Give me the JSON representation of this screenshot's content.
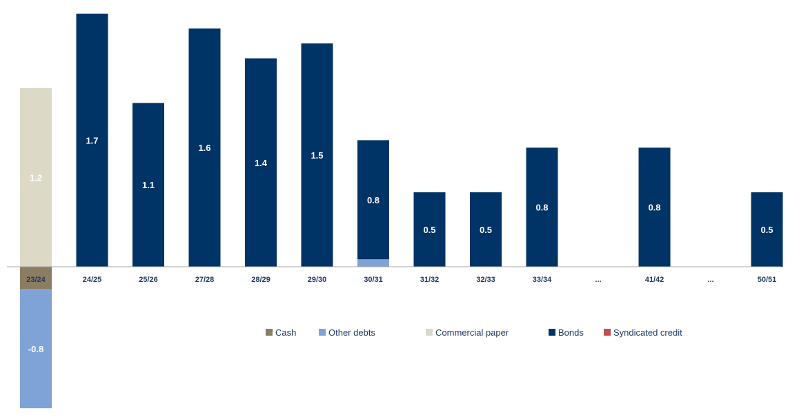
{
  "chart_data": {
    "type": "bar",
    "stacked": true,
    "categories": [
      "23/24",
      "24/25",
      "25/26",
      "27/28",
      "28/29",
      "29/30",
      "30/31",
      "31/32",
      "32/33",
      "33/34",
      "...",
      "41/42",
      "...",
      "50/51"
    ],
    "series": [
      {
        "name": "Cash",
        "color": "#8b7d61",
        "values": [
          -0.15,
          0,
          0,
          0,
          0,
          0,
          0,
          0,
          0,
          0,
          0,
          0,
          0,
          0
        ]
      },
      {
        "name": "Other debts",
        "color": "#7fa3d6",
        "values": [
          -0.8,
          0,
          0,
          0,
          0,
          0,
          0.05,
          0,
          0,
          0,
          0,
          0,
          0,
          0
        ]
      },
      {
        "name": "Commercial paper",
        "color": "#dcdac6",
        "values": [
          1.2,
          0,
          0,
          0,
          0,
          0,
          0,
          0,
          0,
          0,
          0,
          0,
          0,
          0
        ]
      },
      {
        "name": "Bonds",
        "color": "#003366",
        "values": [
          0,
          1.7,
          1.1,
          1.6,
          1.4,
          1.5,
          0.8,
          0.5,
          0.5,
          0.8,
          0,
          0.8,
          0,
          0.5
        ]
      },
      {
        "name": "Syndicated credit",
        "color": "#c0504d",
        "values": [
          0,
          0,
          0,
          0,
          0,
          0,
          0,
          0,
          0,
          0,
          0,
          0,
          0,
          0
        ]
      }
    ],
    "data_labels": [
      {
        "category": "23/24",
        "series": "Commercial paper",
        "text": "1.2"
      },
      {
        "category": "23/24",
        "series": "Other debts",
        "text": "-0.8"
      },
      {
        "category": "24/25",
        "series": "Bonds",
        "text": "1.7"
      },
      {
        "category": "25/26",
        "series": "Bonds",
        "text": "1.1"
      },
      {
        "category": "27/28",
        "series": "Bonds",
        "text": "1.6"
      },
      {
        "category": "28/29",
        "series": "Bonds",
        "text": "1.4"
      },
      {
        "category": "29/30",
        "series": "Bonds",
        "text": "1.5"
      },
      {
        "category": "30/31",
        "series": "Bonds",
        "text": "0.8"
      },
      {
        "category": "31/32",
        "series": "Bonds",
        "text": "0.5"
      },
      {
        "category": "32/33",
        "series": "Bonds",
        "text": "0.5"
      },
      {
        "category": "33/34",
        "series": "Bonds",
        "text": "0.8"
      },
      {
        "category": "41/42",
        "series": "Bonds",
        "text": "0.8"
      },
      {
        "category": "50/51",
        "series": "Bonds",
        "text": "0.5"
      }
    ],
    "bar_heights_approx": [
      1.2,
      1.7,
      1.1,
      1.7,
      1.4,
      1.6,
      0.9,
      0.5,
      0.5,
      0.8,
      0,
      0.8,
      0,
      0.5
    ],
    "ylim": [
      -1.0,
      1.75
    ],
    "grid": false,
    "legend": "center-right, below the axis"
  }
}
